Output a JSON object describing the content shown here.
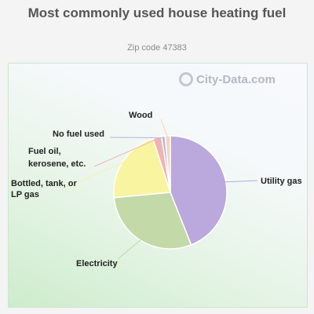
{
  "chart_data": {
    "type": "pie",
    "title": "Most commonly used house heating fuel",
    "subtitle": "Zip code 47383",
    "watermark": "City-Data.com",
    "slices": [
      {
        "label": "Utility gas",
        "value": 44.0,
        "color": "#bba8dc"
      },
      {
        "label": "Electricity",
        "value": 29.5,
        "color": "#c3d9a8"
      },
      {
        "label": "Bottled, tank, or LP gas",
        "value": 21.5,
        "color": "#f8f4a0"
      },
      {
        "label": "Fuel oil, kerosene, etc.",
        "value": 2.5,
        "color": "#f3b2b2"
      },
      {
        "label": "No fuel used",
        "value": 1.0,
        "color": "#a9b8e4"
      },
      {
        "label": "Wood",
        "value": 1.5,
        "color": "#fad4b6"
      }
    ]
  }
}
